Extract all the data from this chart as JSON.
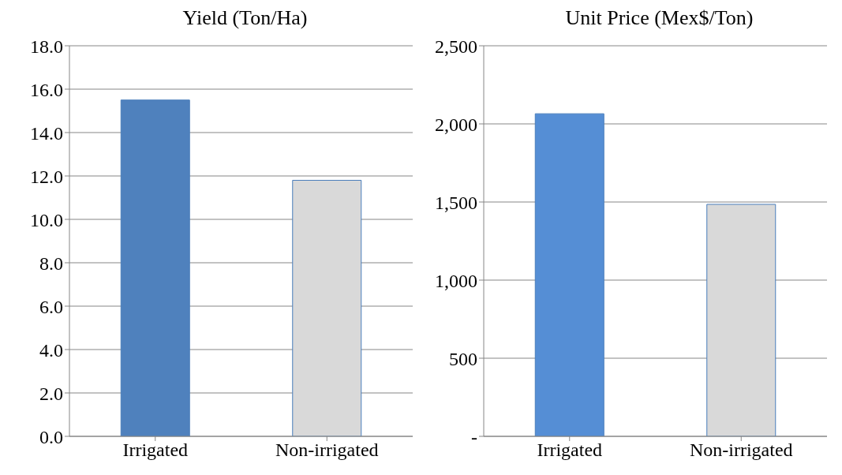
{
  "chart_data": [
    {
      "type": "bar",
      "title": "Yield (Ton/Ha)",
      "categories": [
        "Irrigated",
        "Non-irrigated"
      ],
      "values": [
        15.5,
        11.8
      ],
      "colors": [
        "#4f81bd",
        "#d9d9d9"
      ],
      "ylim": [
        0,
        18
      ],
      "yticks": [
        {
          "value": 0,
          "label": "0.0"
        },
        {
          "value": 2,
          "label": "2.0"
        },
        {
          "value": 4,
          "label": "4.0"
        },
        {
          "value": 6,
          "label": "6.0"
        },
        {
          "value": 8,
          "label": "8.0"
        },
        {
          "value": 10,
          "label": "10.0"
        },
        {
          "value": 12,
          "label": "12.0"
        },
        {
          "value": 14,
          "label": "14.0"
        },
        {
          "value": 16,
          "label": "16.0"
        },
        {
          "value": 18,
          "label": "18.0"
        }
      ],
      "grid": "y"
    },
    {
      "type": "bar",
      "title": "Unit Price (Mex$/Ton)",
      "categories": [
        "Irrigated",
        "Non-irrigated"
      ],
      "values": [
        2065,
        1485
      ],
      "colors": [
        "#558ed5",
        "#d9d9d9"
      ],
      "ylim": [
        0,
        2500
      ],
      "yticks": [
        {
          "value": 0,
          "label": "-"
        },
        {
          "value": 500,
          "label": "500"
        },
        {
          "value": 1000,
          "label": "1,000"
        },
        {
          "value": 1500,
          "label": "1,500"
        },
        {
          "value": 2000,
          "label": "2,000"
        },
        {
          "value": 2500,
          "label": "2,500"
        }
      ],
      "grid": "y"
    }
  ]
}
